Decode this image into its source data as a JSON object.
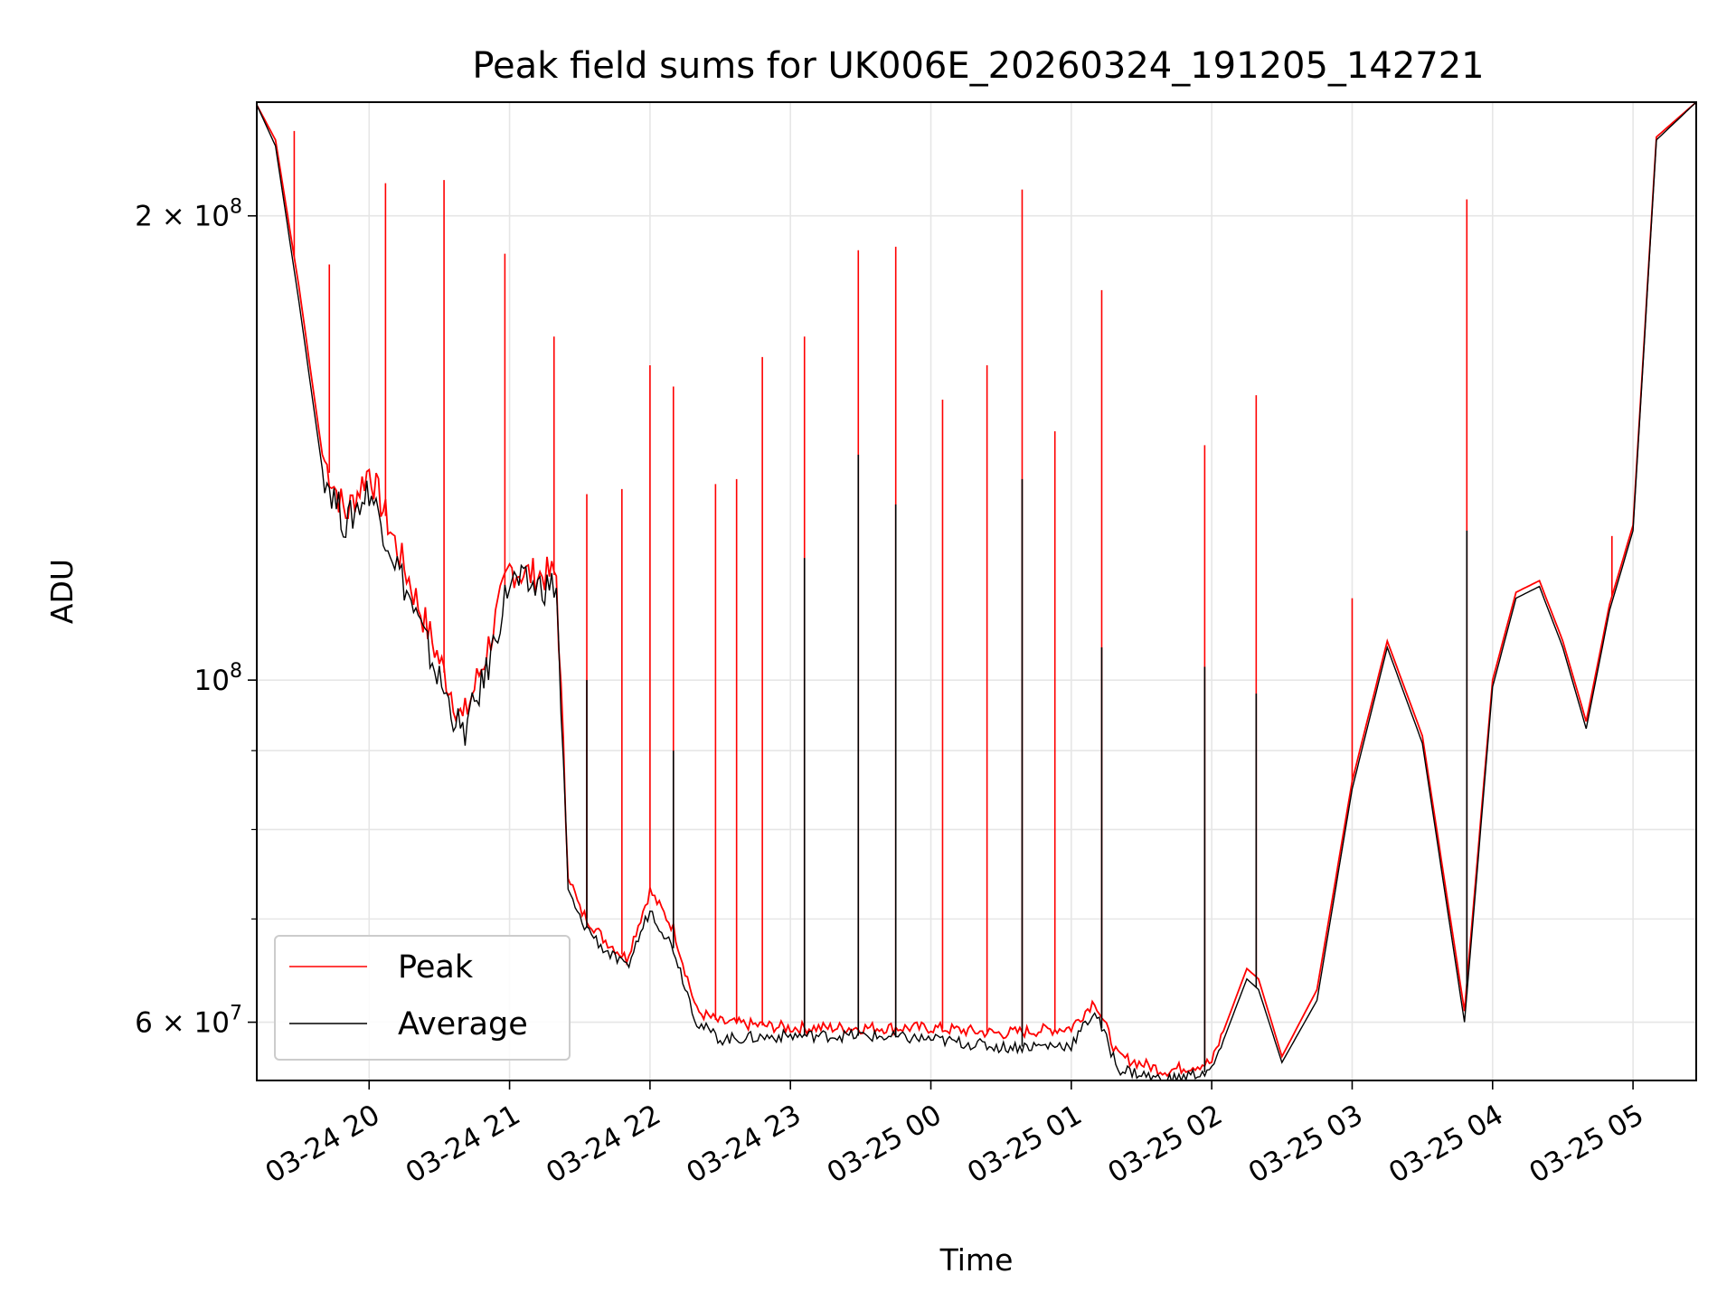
{
  "chart_data": {
    "type": "line",
    "title": "Peak field sums for UK006E_20260324_191205_142721",
    "xlabel": "Time",
    "ylabel": "ADU",
    "y_scale": "log",
    "xlim": [
      "2026-03-24 19:12",
      "2026-03-25 05:27"
    ],
    "ylim": [
      55000000,
      237000000
    ],
    "grid": true,
    "legend_position": "lower-left",
    "x_ticks": [
      "2026-03-24 20:00",
      "2026-03-24 21:00",
      "2026-03-24 22:00",
      "2026-03-24 23:00",
      "2026-03-25 00:00",
      "2026-03-25 01:00",
      "2026-03-25 02:00",
      "2026-03-25 03:00",
      "2026-03-25 04:00",
      "2026-03-25 05:00"
    ],
    "x_tick_labels": [
      "03-24 20",
      "03-24 21",
      "03-24 22",
      "03-24 23",
      "03-25 00",
      "03-25 01",
      "03-25 02",
      "03-25 03",
      "03-25 04",
      "03-25 05"
    ],
    "y_major_ticks": [
      60000000,
      100000000,
      200000000
    ],
    "y_tick_labels": [
      "6 × 10^7",
      "10^8",
      "2 × 10^8"
    ],
    "y_minor_ticks": [
      70000000,
      80000000,
      90000000
    ],
    "series": [
      {
        "name": "Peak",
        "color": "#ff0000",
        "x": [
          "2026-03-24 19:12",
          "2026-03-24 19:20",
          "2026-03-24 19:30",
          "2026-03-24 19:40",
          "2026-03-24 19:50",
          "2026-03-24 20:00",
          "2026-03-24 20:10",
          "2026-03-24 20:20",
          "2026-03-24 20:30",
          "2026-03-24 20:40",
          "2026-03-24 20:50",
          "2026-03-24 21:00",
          "2026-03-24 21:10",
          "2026-03-24 21:20",
          "2026-03-24 21:25",
          "2026-03-24 21:30",
          "2026-03-24 21:40",
          "2026-03-24 21:50",
          "2026-03-24 22:00",
          "2026-03-24 22:10",
          "2026-03-24 22:20",
          "2026-03-24 22:30",
          "2026-03-24 23:00",
          "2026-03-24 23:30",
          "2026-03-25 00:00",
          "2026-03-25 00:30",
          "2026-03-25 01:00",
          "2026-03-25 01:10",
          "2026-03-25 01:20",
          "2026-03-25 01:40",
          "2026-03-25 02:00",
          "2026-03-25 02:15",
          "2026-03-25 02:20",
          "2026-03-25 02:30",
          "2026-03-25 02:45",
          "2026-03-25 03:00",
          "2026-03-25 03:15",
          "2026-03-25 03:30",
          "2026-03-25 03:48",
          "2026-03-25 04:00",
          "2026-03-25 04:10",
          "2026-03-25 04:20",
          "2026-03-25 04:30",
          "2026-03-25 04:40",
          "2026-03-25 04:50",
          "2026-03-25 05:00",
          "2026-03-25 05:10",
          "2026-03-25 05:27"
        ],
        "values": [
          236000000,
          224000000,
          180000000,
          140000000,
          128000000,
          137000000,
          124000000,
          113000000,
          103000000,
          94000000,
          104000000,
          118000000,
          117000000,
          117000000,
          75000000,
          71000000,
          68000000,
          66000000,
          73000000,
          69000000,
          61000000,
          60000000,
          59500000,
          59500000,
          59500000,
          59000000,
          59500000,
          62000000,
          57000000,
          55800000,
          56500000,
          65000000,
          64000000,
          57000000,
          63000000,
          86000000,
          106000000,
          92000000,
          61000000,
          100000000,
          114000000,
          116000000,
          106000000,
          94000000,
          112000000,
          126000000,
          225000000,
          237000000
        ],
        "spikes": [
          {
            "x": "2026-03-24 19:28",
            "value": 227000000
          },
          {
            "x": "2026-03-24 19:43",
            "value": 186000000
          },
          {
            "x": "2026-03-24 20:07",
            "value": 210000000
          },
          {
            "x": "2026-03-24 20:32",
            "value": 211000000
          },
          {
            "x": "2026-03-24 20:58",
            "value": 189000000
          },
          {
            "x": "2026-03-24 21:19",
            "value": 167000000
          },
          {
            "x": "2026-03-24 21:33",
            "value": 132000000
          },
          {
            "x": "2026-03-24 21:48",
            "value": 133000000
          },
          {
            "x": "2026-03-24 22:00",
            "value": 160000000
          },
          {
            "x": "2026-03-24 22:10",
            "value": 155000000
          },
          {
            "x": "2026-03-24 22:28",
            "value": 134000000
          },
          {
            "x": "2026-03-24 22:37",
            "value": 135000000
          },
          {
            "x": "2026-03-24 22:48",
            "value": 162000000
          },
          {
            "x": "2026-03-24 23:06",
            "value": 167000000
          },
          {
            "x": "2026-03-24 23:29",
            "value": 190000000
          },
          {
            "x": "2026-03-24 23:45",
            "value": 191000000
          },
          {
            "x": "2026-03-25 00:05",
            "value": 152000000
          },
          {
            "x": "2026-03-25 00:24",
            "value": 160000000
          },
          {
            "x": "2026-03-25 00:39",
            "value": 208000000
          },
          {
            "x": "2026-03-25 00:53",
            "value": 145000000
          },
          {
            "x": "2026-03-25 01:13",
            "value": 179000000
          },
          {
            "x": "2026-03-25 01:57",
            "value": 142000000
          },
          {
            "x": "2026-03-25 02:19",
            "value": 153000000
          },
          {
            "x": "2026-03-25 03:00",
            "value": 113000000
          },
          {
            "x": "2026-03-25 03:49",
            "value": 205000000
          },
          {
            "x": "2026-03-25 04:51",
            "value": 124000000
          }
        ]
      },
      {
        "name": "Average",
        "color": "#000000",
        "x": [
          "2026-03-24 19:12",
          "2026-03-24 19:20",
          "2026-03-24 19:30",
          "2026-03-24 19:40",
          "2026-03-24 19:50",
          "2026-03-24 20:00",
          "2026-03-24 20:10",
          "2026-03-24 20:20",
          "2026-03-24 20:30",
          "2026-03-24 20:40",
          "2026-03-24 20:50",
          "2026-03-24 21:00",
          "2026-03-24 21:10",
          "2026-03-24 21:20",
          "2026-03-24 21:25",
          "2026-03-24 21:30",
          "2026-03-24 21:40",
          "2026-03-24 21:50",
          "2026-03-24 22:00",
          "2026-03-24 22:10",
          "2026-03-24 22:20",
          "2026-03-24 22:30",
          "2026-03-24 23:00",
          "2026-03-24 23:30",
          "2026-03-25 00:00",
          "2026-03-25 00:30",
          "2026-03-25 01:00",
          "2026-03-25 01:10",
          "2026-03-25 01:20",
          "2026-03-25 01:40",
          "2026-03-25 02:00",
          "2026-03-25 02:15",
          "2026-03-25 02:20",
          "2026-03-25 02:30",
          "2026-03-25 02:45",
          "2026-03-25 03:00",
          "2026-03-25 03:15",
          "2026-03-25 03:30",
          "2026-03-25 03:48",
          "2026-03-25 04:00",
          "2026-03-25 04:10",
          "2026-03-25 04:20",
          "2026-03-25 04:30",
          "2026-03-25 04:40",
          "2026-03-25 04:50",
          "2026-03-25 05:00",
          "2026-03-25 05:10",
          "2026-03-25 05:27"
        ],
        "values": [
          236000000,
          222000000,
          176000000,
          137000000,
          126000000,
          133000000,
          121000000,
          110000000,
          100000000,
          92000000,
          101000000,
          116000000,
          115000000,
          115000000,
          73000000,
          70000000,
          67000000,
          65000000,
          71000000,
          67000000,
          60000000,
          58500000,
          58800000,
          58800000,
          58500000,
          57800000,
          58000000,
          61000000,
          56000000,
          55000000,
          55800000,
          64000000,
          63000000,
          56500000,
          62000000,
          85000000,
          105000000,
          91000000,
          60000000,
          99000000,
          113000000,
          115000000,
          105000000,
          93000000,
          111000000,
          125000000,
          224000000,
          237000000
        ],
        "spikes": [
          {
            "x": "2026-03-24 21:33",
            "value": 100000000
          },
          {
            "x": "2026-03-24 22:10",
            "value": 90000000
          },
          {
            "x": "2026-03-24 23:06",
            "value": 120000000
          },
          {
            "x": "2026-03-24 23:29",
            "value": 140000000
          },
          {
            "x": "2026-03-24 23:45",
            "value": 130000000
          },
          {
            "x": "2026-03-25 00:39",
            "value": 135000000
          },
          {
            "x": "2026-03-25 01:13",
            "value": 105000000
          },
          {
            "x": "2026-03-25 01:57",
            "value": 102000000
          },
          {
            "x": "2026-03-25 02:19",
            "value": 98000000
          },
          {
            "x": "2026-03-25 03:49",
            "value": 125000000
          }
        ]
      }
    ]
  }
}
